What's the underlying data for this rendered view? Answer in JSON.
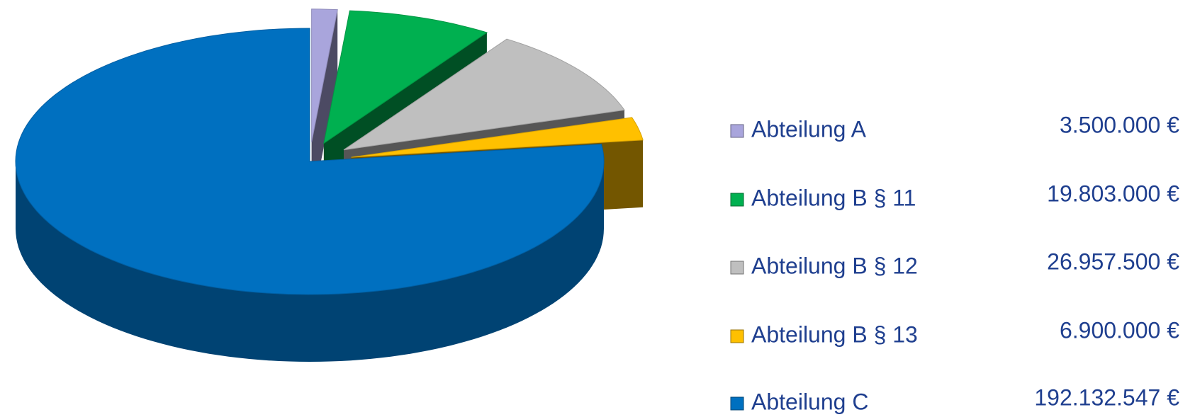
{
  "chart_data": {
    "type": "pie",
    "categories": [
      "Abteilung A",
      "Abteilung B § 11",
      "Abteilung B § 12",
      "Abteilung B § 13",
      "Abteilung C"
    ],
    "values": [
      3500000,
      19803000,
      26957500,
      6900000,
      192132547
    ],
    "value_labels": [
      "3.500.000 €",
      "19.803.000 €",
      "26.957.500 €",
      "6.900.000 €",
      "192.132.547 €"
    ],
    "colors": [
      "#a9a5dc",
      "#00b050",
      "#bfbfbf",
      "#ffc000",
      "#0070c0"
    ],
    "legend": "right"
  }
}
